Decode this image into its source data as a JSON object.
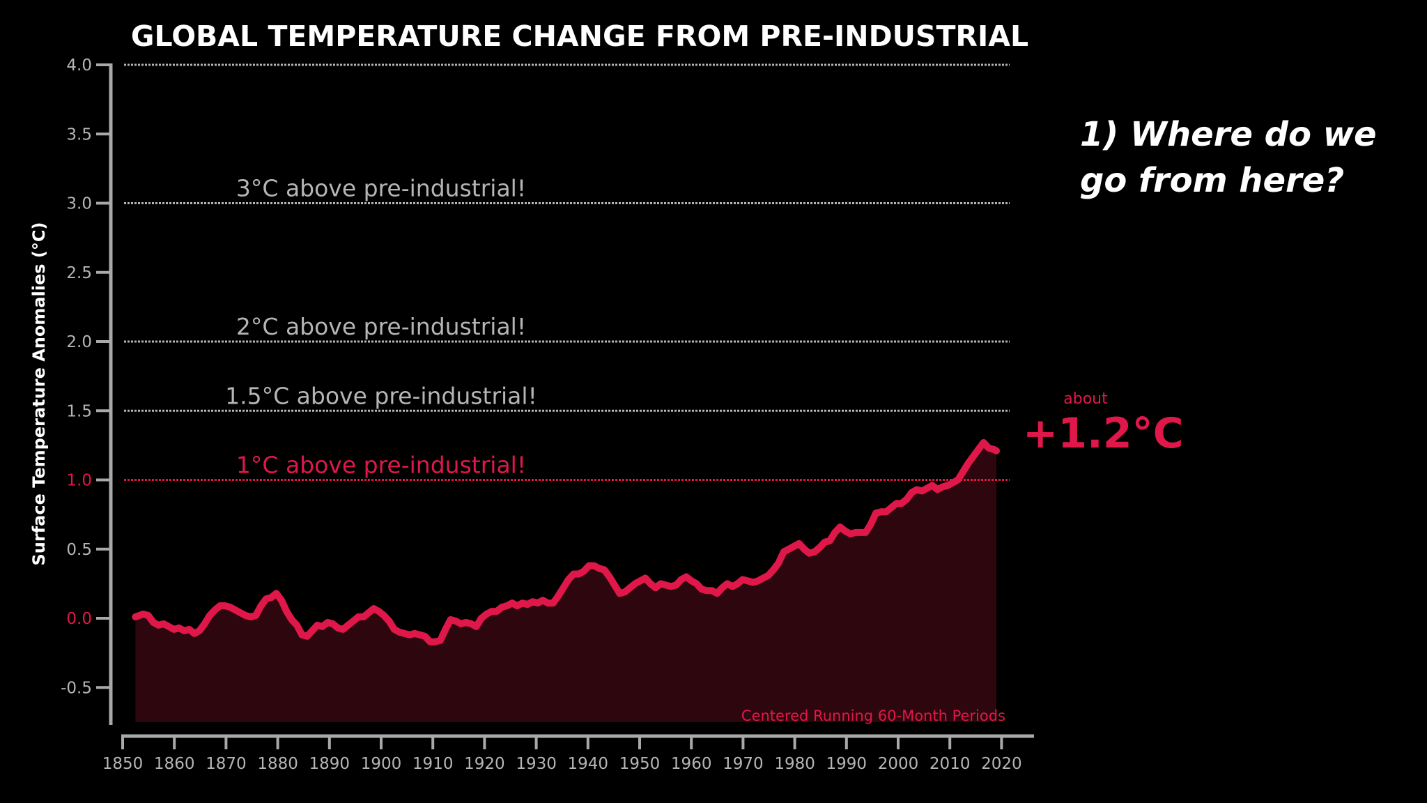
{
  "colors": {
    "background": "#000000",
    "accent": "#e0184a",
    "fill": "#2e060d",
    "threshold": "#b5b5b5",
    "axis": "#a9a9a9",
    "text": "#ffffff"
  },
  "side_question": "1) Where do we go from here?",
  "current_label": {
    "prefix": "about",
    "value": "+1.2°C"
  },
  "chart_data": {
    "type": "line",
    "title": "GLOBAL TEMPERATURE CHANGE FROM PRE-INDUSTRIAL",
    "xlabel": "",
    "ylabel": "Surface Temperature Anomalies (°C)",
    "xlim": [
      1850,
      2022
    ],
    "ylim": [
      -0.75,
      4.0
    ],
    "x_ticks": [
      1850,
      1860,
      1870,
      1880,
      1890,
      1900,
      1910,
      1920,
      1930,
      1940,
      1950,
      1960,
      1970,
      1980,
      1990,
      2000,
      2010,
      2020
    ],
    "y_ticks": [
      {
        "value": -0.5,
        "label": "-0.5"
      },
      {
        "value": 0.0,
        "label": "0.0"
      },
      {
        "value": 0.5,
        "label": "0.5"
      },
      {
        "value": 1.0,
        "label": "1.0"
      },
      {
        "value": 1.5,
        "label": "1.5"
      },
      {
        "value": 2.0,
        "label": "2.0"
      },
      {
        "value": 2.5,
        "label": "2.5"
      },
      {
        "value": 3.0,
        "label": "3.0"
      },
      {
        "value": 3.5,
        "label": "3.5"
      },
      {
        "value": 4.0,
        "label": "4.0"
      }
    ],
    "thresholds": [
      {
        "value": 4.0,
        "label": ""
      },
      {
        "value": 3.0,
        "label": "3°C above pre-industrial!"
      },
      {
        "value": 2.0,
        "label": "2°C above pre-industrial!"
      },
      {
        "value": 1.5,
        "label": "1.5°C above pre-industrial!"
      },
      {
        "value": 1.0,
        "label": "1°C above pre-industrial!",
        "highlight": true
      }
    ],
    "annotation": "Centered Running 60-Month Periods",
    "grid": false,
    "series": [
      {
        "name": "Centered Running 60-Month Periods",
        "x": [
          1852.5,
          1854,
          1855,
          1856,
          1857,
          1858,
          1859,
          1860,
          1861,
          1862,
          1863,
          1864,
          1865,
          1866,
          1867,
          1868,
          1869,
          1870,
          1871,
          1872,
          1873,
          1874,
          1875,
          1876,
          1877,
          1878,
          1879,
          1880,
          1881,
          1882,
          1883,
          1884,
          1885,
          1886,
          1887,
          1888,
          1889,
          1890,
          1891,
          1892,
          1893,
          1894,
          1895,
          1896,
          1897,
          1898,
          1899,
          1900,
          1901,
          1902,
          1903,
          1904,
          1905,
          1906,
          1907,
          1908,
          1909,
          1910,
          1911,
          1912,
          1913,
          1914,
          1915,
          1916,
          1917,
          1918,
          1919,
          1920,
          1921,
          1922,
          1923,
          1924,
          1925,
          1926,
          1927,
          1928,
          1929,
          1930,
          1931,
          1932,
          1933,
          1934,
          1935,
          1936,
          1937,
          1938,
          1939,
          1940,
          1941,
          1942,
          1943,
          1944,
          1945,
          1946,
          1947,
          1948,
          1949,
          1950,
          1951,
          1952,
          1953,
          1954,
          1955,
          1956,
          1957,
          1958,
          1959,
          1960,
          1961,
          1962,
          1963,
          1964,
          1965,
          1966,
          1967,
          1968,
          1969,
          1970,
          1971,
          1972,
          1973,
          1974,
          1975,
          1976,
          1977,
          1978,
          1979,
          1980,
          1981,
          1982,
          1983,
          1984,
          1985,
          1986,
          1987,
          1988,
          1989,
          1990,
          1991,
          1992,
          1993,
          1994,
          1995,
          1996,
          1997,
          1998,
          1999,
          2000,
          2001,
          2002,
          2003,
          2004,
          2005,
          2006,
          2007,
          2008,
          2009,
          2010,
          2011,
          2012,
          2013,
          2014,
          2015,
          2016,
          2017,
          2018,
          2019,
          2020,
          2020.5
        ],
        "values": [
          0.01,
          0.03,
          0.02,
          -0.03,
          -0.05,
          -0.04,
          -0.06,
          -0.08,
          -0.07,
          -0.09,
          -0.08,
          -0.11,
          -0.09,
          -0.04,
          0.02,
          0.06,
          0.09,
          0.09,
          0.08,
          0.06,
          0.04,
          0.02,
          0.01,
          0.02,
          0.09,
          0.14,
          0.15,
          0.18,
          0.13,
          0.05,
          -0.01,
          -0.05,
          -0.12,
          -0.13,
          -0.09,
          -0.05,
          -0.06,
          -0.03,
          -0.04,
          -0.07,
          -0.08,
          -0.05,
          -0.02,
          0.01,
          0.01,
          0.04,
          0.07,
          0.05,
          0.02,
          -0.02,
          -0.08,
          -0.1,
          -0.11,
          -0.12,
          -0.11,
          -0.12,
          -0.13,
          -0.17,
          -0.17,
          -0.16,
          -0.08,
          -0.01,
          -0.02,
          -0.04,
          -0.03,
          -0.04,
          -0.06,
          0.0,
          0.03,
          0.05,
          0.05,
          0.08,
          0.09,
          0.11,
          0.09,
          0.11,
          0.1,
          0.12,
          0.11,
          0.13,
          0.11,
          0.11,
          0.16,
          0.22,
          0.28,
          0.32,
          0.32,
          0.34,
          0.38,
          0.38,
          0.36,
          0.35,
          0.3,
          0.24,
          0.18,
          0.19,
          0.22,
          0.25,
          0.27,
          0.29,
          0.25,
          0.22,
          0.25,
          0.24,
          0.23,
          0.24,
          0.28,
          0.3,
          0.27,
          0.25,
          0.21,
          0.2,
          0.2,
          0.18,
          0.22,
          0.25,
          0.23,
          0.25,
          0.28,
          0.27,
          0.26,
          0.27,
          0.29,
          0.31,
          0.35,
          0.4,
          0.48,
          0.5,
          0.52,
          0.54,
          0.5,
          0.47,
          0.48,
          0.51,
          0.55,
          0.56,
          0.62,
          0.66,
          0.63,
          0.61,
          0.62,
          0.62,
          0.62,
          0.68,
          0.76,
          0.77,
          0.77,
          0.8,
          0.83,
          0.83,
          0.86,
          0.91,
          0.93,
          0.92,
          0.94,
          0.96,
          0.93,
          0.95,
          0.96,
          0.98,
          1.0,
          1.06,
          1.12,
          1.17,
          1.22,
          1.27,
          1.23,
          1.22,
          1.21
        ]
      }
    ]
  }
}
